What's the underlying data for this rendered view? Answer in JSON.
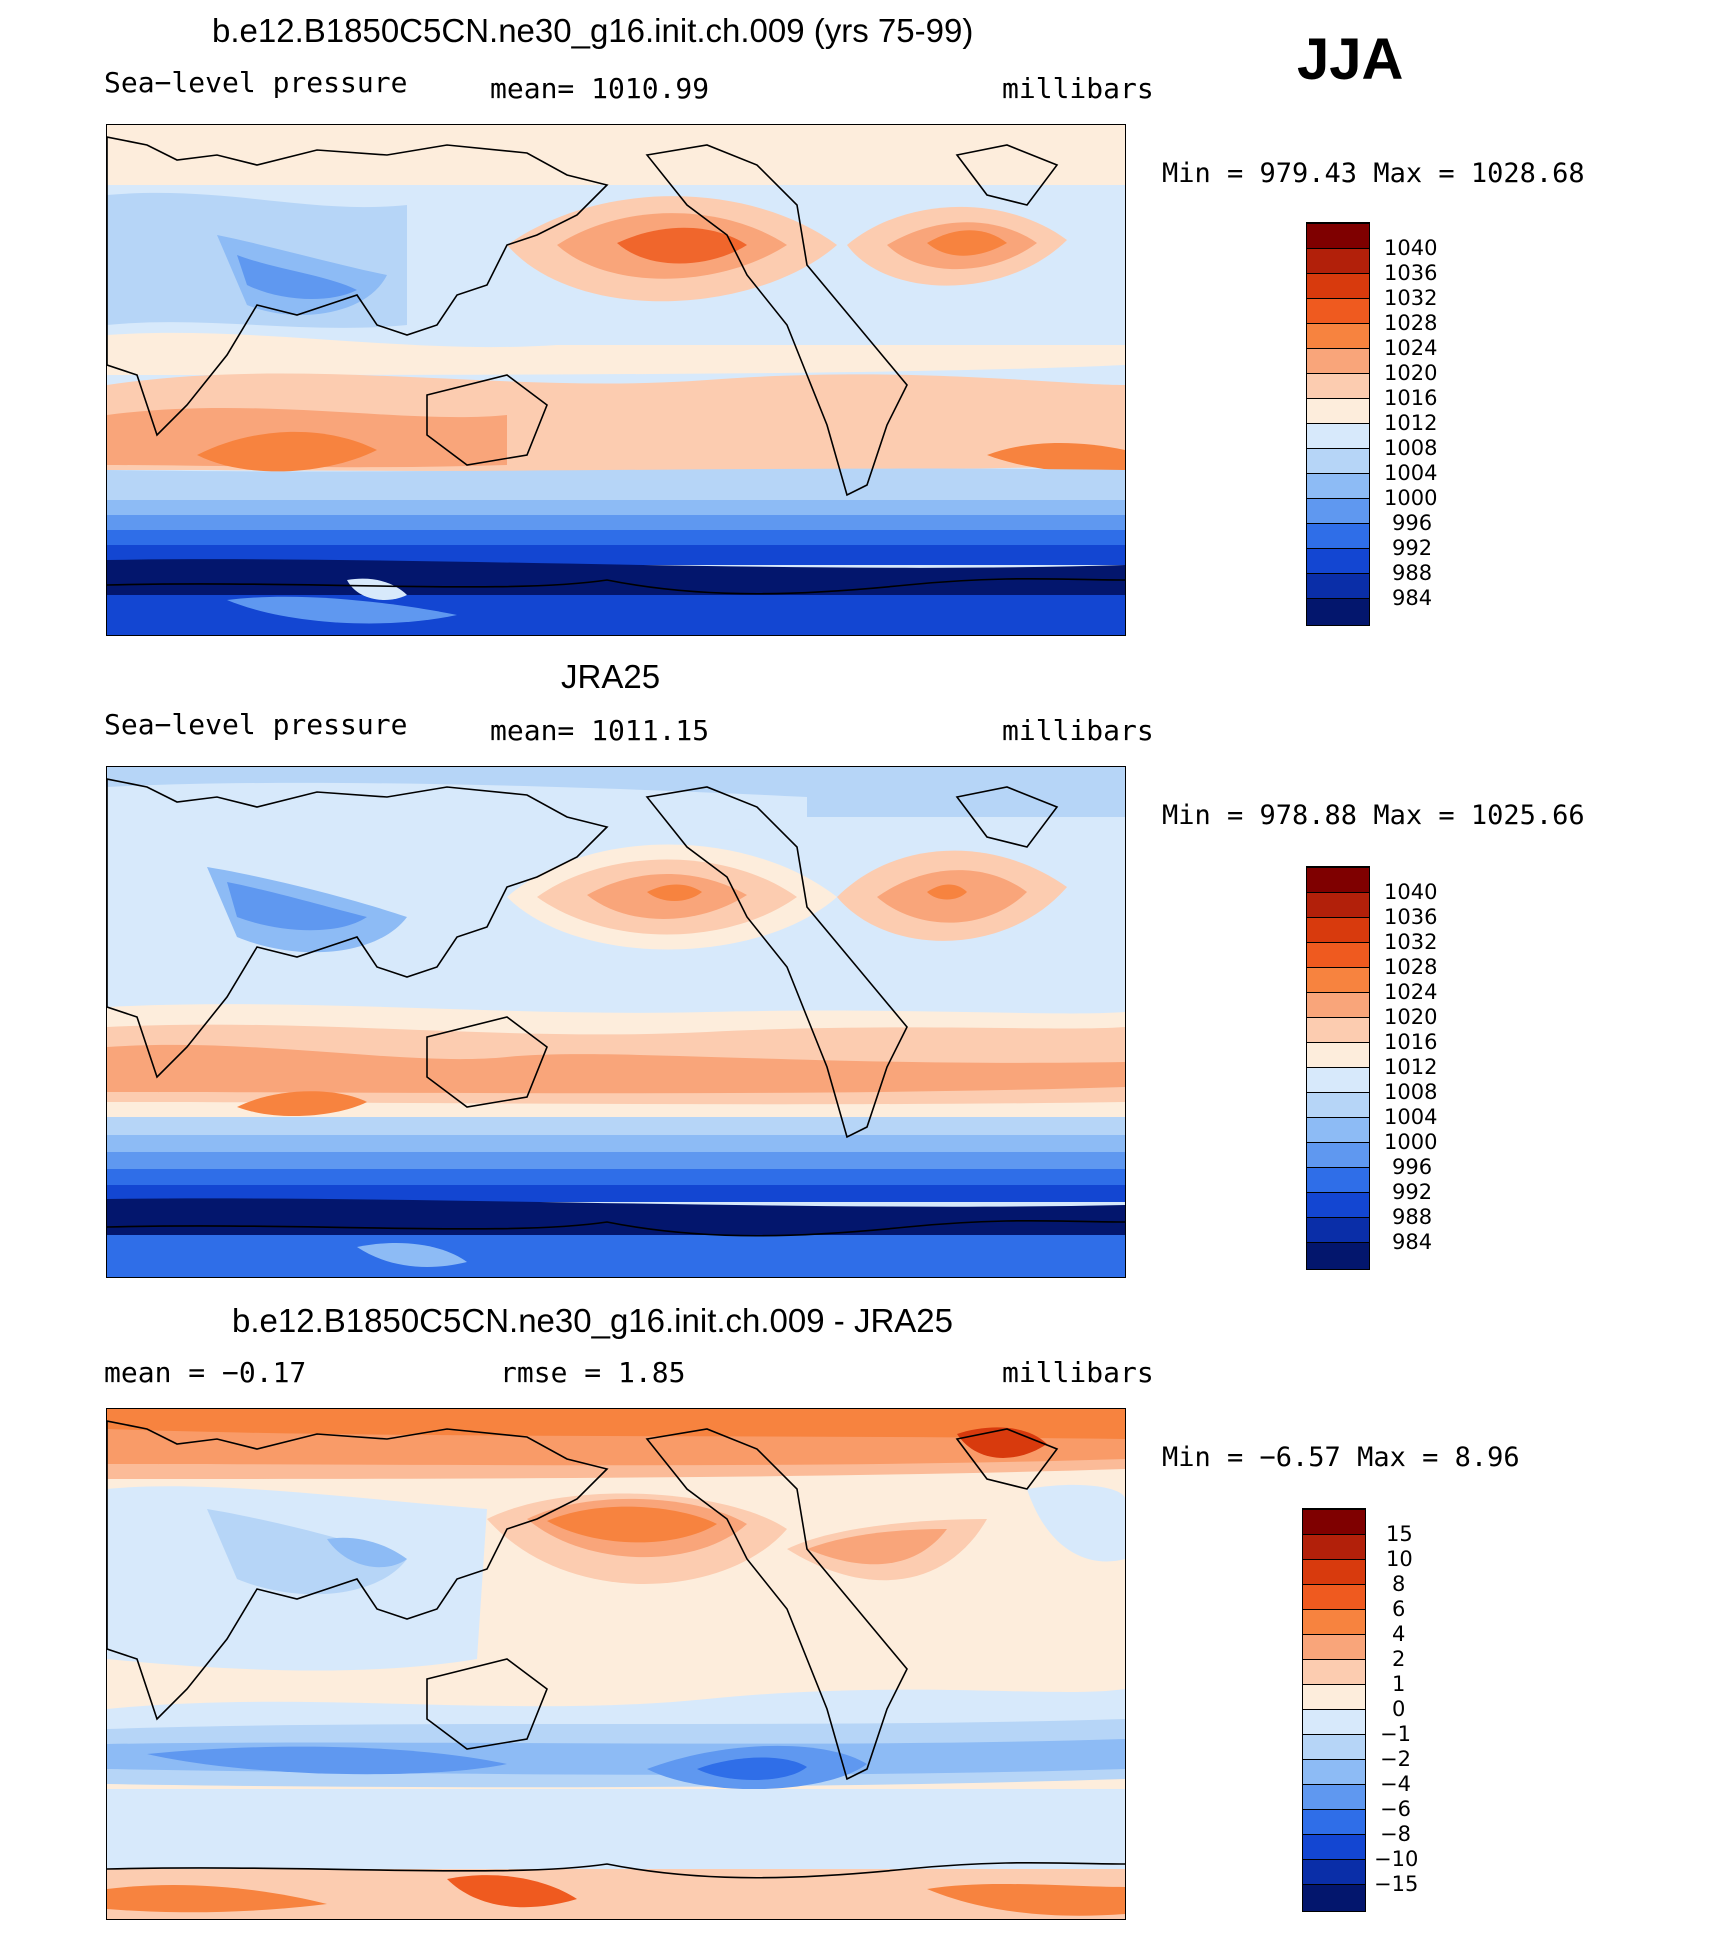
{
  "season": "JJA",
  "panels": [
    {
      "id": "model",
      "title": "b.e12.B1850C5CN.ne30_g16.init.ch.009 (yrs 75-99)",
      "left_label": "Sea−level pressure",
      "center_label": "mean=  1010.99",
      "right_label": "millibars",
      "minmax": "Min  =  979.43  Max  =  1028.68",
      "colorbar_labels": [
        "1040",
        "1036",
        "1032",
        "1028",
        "1024",
        "1020",
        "1016",
        "1012",
        "1008",
        "1004",
        "1000",
        "996",
        "992",
        "988",
        "984"
      ]
    },
    {
      "id": "obs",
      "title": "JRA25",
      "left_label": "Sea−level pressure",
      "center_label": "mean=  1011.15",
      "right_label": "millibars",
      "minmax": "Min  =  978.88  Max  =  1025.66",
      "colorbar_labels": [
        "1040",
        "1036",
        "1032",
        "1028",
        "1024",
        "1020",
        "1016",
        "1012",
        "1008",
        "1004",
        "1000",
        "996",
        "992",
        "988",
        "984"
      ]
    },
    {
      "id": "diff",
      "title": "b.e12.B1850C5CN.ne30_g16.init.ch.009 - JRA25",
      "left_label": "mean  =    −0.17",
      "center_label": "rmse  =     1.85",
      "right_label": "millibars",
      "minmax": "Min  =    −6.57  Max  =     8.96",
      "colorbar_labels": [
        "15",
        "10",
        "8",
        "6",
        "4",
        "2",
        "1",
        "0",
        "−1",
        "−2",
        "−4",
        "−6",
        "−8",
        "−10",
        "−15"
      ]
    }
  ],
  "colors": {
    "colorbar": [
      "#7f0000",
      "#b2200a",
      "#d83a0d",
      "#ef5a1f",
      "#f7833f",
      "#f9a57a",
      "#fcccb0",
      "#fdeddc",
      "#d7e9fb",
      "#b6d5f7",
      "#8dbbf5",
      "#5f98f0",
      "#2f6ee8",
      "#1346d2",
      "#0a2ea8",
      "#03166d"
    ],
    "land_outline": "#000000"
  }
}
